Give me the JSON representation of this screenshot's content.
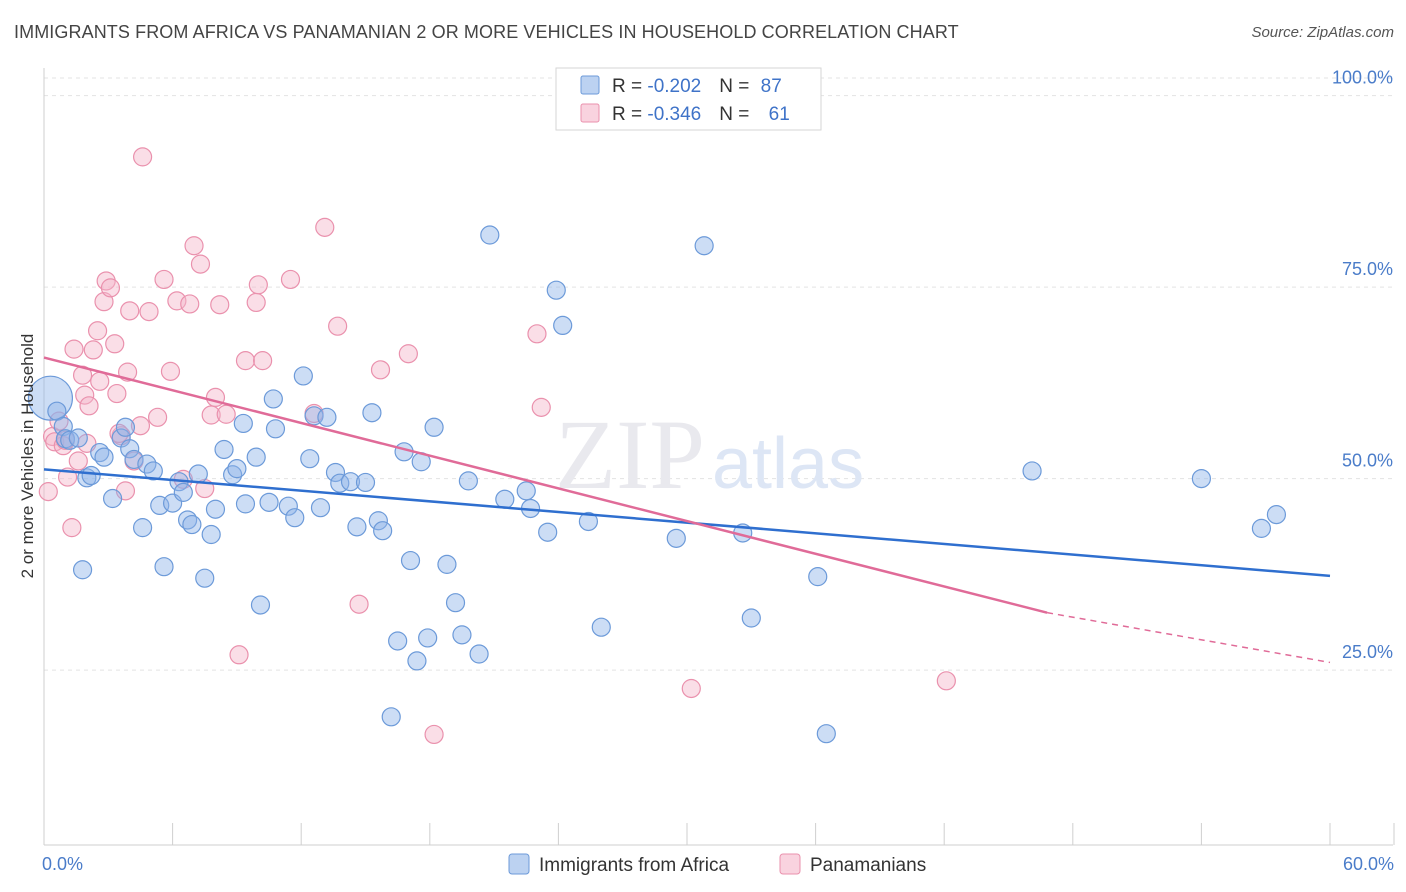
{
  "title": "IMMIGRANTS FROM AFRICA VS PANAMANIAN 2 OR MORE VEHICLES IN HOUSEHOLD CORRELATION CHART",
  "source": "Source: ZipAtlas.com",
  "watermark": {
    "zip": "ZIP",
    "atlas": "atlas"
  },
  "chart_data": {
    "type": "scatter",
    "ylabel": "2 or more Vehicles in Household",
    "xlabel": "",
    "xlim": [
      0,
      60
    ],
    "ylim": [
      5,
      105
    ],
    "x_tick_labels": {
      "left": "0.0%",
      "right": "60.0%"
    },
    "y_ticks": [
      {
        "value": 100,
        "label": "100.0%"
      },
      {
        "value": 75,
        "label": "75.0%"
      },
      {
        "value": 50,
        "label": "50.0%"
      },
      {
        "value": 25,
        "label": "25.0%"
      }
    ],
    "grid": true,
    "legend_position": "top-center",
    "series": [
      {
        "name": "Immigrants from Africa",
        "color": "#8fb4e8",
        "stroke": "#6c9ad9",
        "line_color": "#2f6fcf",
        "R": "-0.202",
        "N": "87",
        "trend": {
          "x0": 0,
          "y0": 51.2,
          "x1": 60,
          "y1": 37.3
        },
        "points": [
          [
            0.3,
            60.5
          ],
          [
            0.6,
            58.8
          ],
          [
            0.9,
            56.8
          ],
          [
            1.0,
            55.2
          ],
          [
            1.2,
            55.0
          ],
          [
            1.6,
            55.3
          ],
          [
            1.8,
            38.1
          ],
          [
            2.0,
            50.1
          ],
          [
            2.2,
            50.4
          ],
          [
            2.6,
            53.4
          ],
          [
            2.8,
            52.8
          ],
          [
            3.2,
            47.4
          ],
          [
            3.6,
            55.3
          ],
          [
            3.8,
            56.7
          ],
          [
            4.0,
            53.9
          ],
          [
            4.2,
            52.5
          ],
          [
            4.6,
            43.6
          ],
          [
            4.8,
            51.9
          ],
          [
            5.1,
            51.0
          ],
          [
            5.4,
            46.5
          ],
          [
            5.6,
            38.5
          ],
          [
            6.0,
            46.8
          ],
          [
            6.3,
            49.6
          ],
          [
            6.5,
            48.2
          ],
          [
            6.7,
            44.6
          ],
          [
            6.9,
            44.0
          ],
          [
            7.2,
            50.6
          ],
          [
            7.5,
            37.0
          ],
          [
            7.8,
            42.7
          ],
          [
            8.0,
            46.0
          ],
          [
            8.4,
            53.8
          ],
          [
            8.8,
            50.5
          ],
          [
            9.0,
            51.3
          ],
          [
            9.3,
            57.2
          ],
          [
            9.4,
            46.7
          ],
          [
            9.9,
            52.8
          ],
          [
            10.1,
            33.5
          ],
          [
            10.5,
            46.9
          ],
          [
            10.7,
            60.4
          ],
          [
            10.8,
            56.5
          ],
          [
            11.4,
            46.4
          ],
          [
            11.7,
            44.9
          ],
          [
            12.1,
            63.4
          ],
          [
            12.4,
            52.6
          ],
          [
            12.6,
            58.2
          ],
          [
            12.9,
            46.2
          ],
          [
            13.2,
            58.0
          ],
          [
            13.6,
            50.8
          ],
          [
            13.8,
            49.4
          ],
          [
            14.3,
            49.6
          ],
          [
            14.6,
            43.7
          ],
          [
            15.0,
            49.5
          ],
          [
            15.3,
            58.6
          ],
          [
            15.6,
            44.5
          ],
          [
            15.8,
            43.2
          ],
          [
            16.2,
            18.9
          ],
          [
            16.5,
            28.8
          ],
          [
            16.8,
            53.5
          ],
          [
            17.1,
            39.3
          ],
          [
            17.4,
            26.2
          ],
          [
            17.6,
            52.2
          ],
          [
            17.9,
            29.2
          ],
          [
            18.2,
            56.7
          ],
          [
            18.8,
            38.8
          ],
          [
            19.2,
            33.8
          ],
          [
            19.5,
            29.6
          ],
          [
            19.8,
            49.7
          ],
          [
            20.3,
            27.1
          ],
          [
            20.8,
            81.8
          ],
          [
            21.5,
            47.3
          ],
          [
            22.5,
            48.4
          ],
          [
            22.7,
            46.1
          ],
          [
            23.5,
            43.0
          ],
          [
            23.9,
            74.6
          ],
          [
            24.2,
            70.0
          ],
          [
            25.4,
            44.4
          ],
          [
            26.0,
            30.6
          ],
          [
            29.5,
            42.2
          ],
          [
            30.8,
            80.4
          ],
          [
            32.6,
            42.9
          ],
          [
            33.0,
            31.8
          ],
          [
            36.1,
            37.2
          ],
          [
            36.5,
            16.7
          ],
          [
            54.0,
            50.0
          ],
          [
            56.8,
            43.5
          ],
          [
            57.5,
            45.3
          ],
          [
            46.1,
            51.0
          ]
        ]
      },
      {
        "name": "Panamanians",
        "color": "#f5b5c9",
        "stroke": "#ea91ad",
        "line_color": "#e06b98",
        "R": "-0.346",
        "N": "61",
        "trend": {
          "x0": 0,
          "y0": 65.8,
          "x1": 46.8,
          "y1": 32.5
        },
        "trend_dashed": {
          "x0": 46.8,
          "y0": 32.5,
          "x1": 60,
          "y1": 26.0
        },
        "points": [
          [
            0.2,
            48.3
          ],
          [
            0.4,
            55.5
          ],
          [
            0.5,
            54.8
          ],
          [
            0.7,
            57.5
          ],
          [
            0.9,
            54.3
          ],
          [
            1.0,
            55.0
          ],
          [
            1.1,
            50.2
          ],
          [
            1.3,
            43.6
          ],
          [
            1.6,
            52.3
          ],
          [
            1.8,
            63.5
          ],
          [
            1.9,
            60.9
          ],
          [
            2.1,
            59.5
          ],
          [
            2.3,
            66.8
          ],
          [
            2.5,
            69.3
          ],
          [
            2.6,
            62.7
          ],
          [
            2.8,
            73.1
          ],
          [
            2.9,
            75.8
          ],
          [
            3.1,
            74.9
          ],
          [
            3.3,
            67.6
          ],
          [
            3.4,
            61.1
          ],
          [
            3.6,
            55.6
          ],
          [
            3.8,
            48.4
          ],
          [
            3.9,
            63.9
          ],
          [
            4.2,
            52.3
          ],
          [
            4.5,
            56.9
          ],
          [
            4.6,
            92.0
          ],
          [
            4.9,
            71.8
          ],
          [
            5.3,
            58.0
          ],
          [
            5.6,
            76.0
          ],
          [
            5.9,
            64.0
          ],
          [
            6.2,
            73.2
          ],
          [
            6.5,
            49.9
          ],
          [
            6.8,
            72.8
          ],
          [
            7.0,
            80.4
          ],
          [
            7.3,
            78.0
          ],
          [
            7.5,
            48.7
          ],
          [
            7.8,
            58.3
          ],
          [
            8.0,
            60.6
          ],
          [
            8.2,
            72.7
          ],
          [
            8.5,
            58.4
          ],
          [
            9.1,
            27.0
          ],
          [
            9.4,
            65.4
          ],
          [
            9.9,
            73.0
          ],
          [
            10.0,
            75.3
          ],
          [
            10.2,
            65.4
          ],
          [
            11.5,
            76.0
          ],
          [
            12.6,
            58.5
          ],
          [
            13.1,
            82.8
          ],
          [
            13.7,
            69.9
          ],
          [
            14.7,
            33.6
          ],
          [
            15.7,
            64.2
          ],
          [
            17.0,
            66.3
          ],
          [
            18.2,
            16.6
          ],
          [
            23.0,
            68.9
          ],
          [
            23.2,
            59.3
          ],
          [
            30.2,
            22.6
          ],
          [
            42.1,
            23.6
          ],
          [
            1.4,
            66.9
          ],
          [
            2.0,
            54.6
          ],
          [
            4.0,
            71.9
          ],
          [
            3.5,
            55.9
          ]
        ]
      }
    ]
  }
}
